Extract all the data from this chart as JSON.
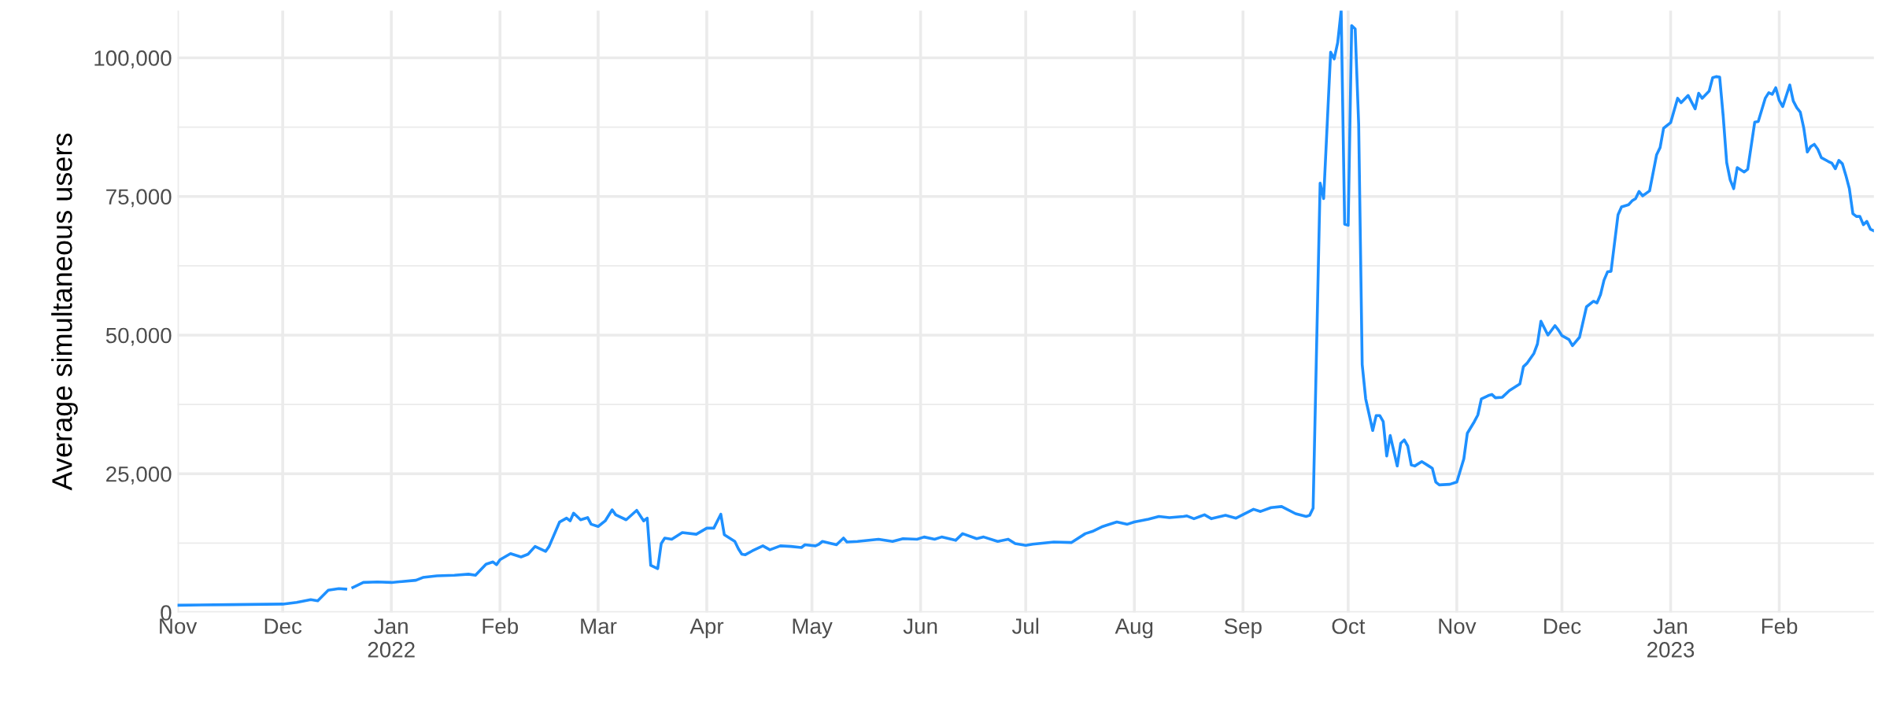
{
  "chart_data": {
    "type": "line",
    "ylabel": "Average simultaneous users",
    "grid": true,
    "line_style": "solid",
    "xlim": [
      "2021-11-01",
      "2023-02-28"
    ],
    "ylim": [
      0,
      108500
    ],
    "xticks": [
      {
        "value": "2021-11-01",
        "label": "Nov"
      },
      {
        "value": "2021-12-01",
        "label": "Dec"
      },
      {
        "value": "2022-01-01",
        "label": "Jan\n2022"
      },
      {
        "value": "2022-02-01",
        "label": "Feb"
      },
      {
        "value": "2022-03-01",
        "label": "Mar"
      },
      {
        "value": "2022-04-01",
        "label": "Apr"
      },
      {
        "value": "2022-05-01",
        "label": "May"
      },
      {
        "value": "2022-06-01",
        "label": "Jun"
      },
      {
        "value": "2022-07-01",
        "label": "Jul"
      },
      {
        "value": "2022-08-01",
        "label": "Aug"
      },
      {
        "value": "2022-09-01",
        "label": "Sep"
      },
      {
        "value": "2022-10-01",
        "label": "Oct"
      },
      {
        "value": "2022-11-01",
        "label": "Nov"
      },
      {
        "value": "2022-12-01",
        "label": "Dec"
      },
      {
        "value": "2023-01-01",
        "label": "Jan\n2023"
      },
      {
        "value": "2023-02-01",
        "label": "Feb"
      }
    ],
    "yticks": [
      {
        "value": 0,
        "label": "0"
      },
      {
        "value": 25000,
        "label": "25,000"
      },
      {
        "value": 50000,
        "label": "50,000"
      },
      {
        "value": 75000,
        "label": "75,000"
      },
      {
        "value": 100000,
        "label": "100,000"
      }
    ],
    "series": [
      {
        "color": "#1e90ff",
        "x": [
          "2021-11-01",
          "2021-11-16",
          "2021-12-01",
          "2021-12-05",
          "2021-12-09",
          "2021-12-11",
          "2021-12-14",
          "2021-12-17",
          "2021-12-19",
          "2021-12-20",
          "2021-12-21",
          "2021-12-24",
          "2021-12-28",
          "2022-01-01",
          "2022-01-08",
          "2022-01-10",
          "2022-01-14",
          "2022-01-19",
          "2022-01-23",
          "2022-01-25",
          "2022-01-28",
          "2022-01-30",
          "2022-01-31",
          "2022-02-01",
          "2022-02-04",
          "2022-02-07",
          "2022-02-09",
          "2022-02-11",
          "2022-02-14",
          "2022-02-15",
          "2022-02-18",
          "2022-02-20",
          "2022-02-21",
          "2022-02-22",
          "2022-02-24",
          "2022-02-26",
          "2022-02-27",
          "2022-03-01",
          "2022-03-03",
          "2022-03-05",
          "2022-03-06",
          "2022-03-09",
          "2022-03-12",
          "2022-03-14",
          "2022-03-15",
          "2022-03-16",
          "2022-03-18",
          "2022-03-19",
          "2022-03-20",
          "2022-03-22",
          "2022-03-25",
          "2022-03-29",
          "2022-04-01",
          "2022-04-03",
          "2022-04-05",
          "2022-04-06",
          "2022-04-09",
          "2022-04-10",
          "2022-04-11",
          "2022-04-12",
          "2022-04-14",
          "2022-04-17",
          "2022-04-19",
          "2022-04-22",
          "2022-04-25",
          "2022-04-28",
          "2022-04-29",
          "2022-05-02",
          "2022-05-03",
          "2022-05-04",
          "2022-05-08",
          "2022-05-10",
          "2022-05-11",
          "2022-05-14",
          "2022-05-20",
          "2022-05-24",
          "2022-05-27",
          "2022-05-31",
          "2022-06-02",
          "2022-06-05",
          "2022-06-07",
          "2022-06-11",
          "2022-06-13",
          "2022-06-17",
          "2022-06-19",
          "2022-06-23",
          "2022-06-26",
          "2022-06-28",
          "2022-07-01",
          "2022-07-03",
          "2022-07-09",
          "2022-07-14",
          "2022-07-18",
          "2022-07-20",
          "2022-07-23",
          "2022-07-24",
          "2022-07-27",
          "2022-07-30",
          "2022-08-01",
          "2022-08-05",
          "2022-08-08",
          "2022-08-11",
          "2022-08-15",
          "2022-08-16",
          "2022-08-18",
          "2022-08-21",
          "2022-08-23",
          "2022-08-27",
          "2022-08-30",
          "2022-09-04",
          "2022-09-06",
          "2022-09-09",
          "2022-09-12",
          "2022-09-16",
          "2022-09-19",
          "2022-09-20",
          "2022-09-21",
          "2022-09-23",
          "2022-09-24",
          "2022-09-26",
          "2022-09-27",
          "2022-09-28",
          "2022-09-29",
          "2022-09-30",
          "2022-10-01",
          "2022-10-02",
          "2022-10-03",
          "2022-10-04",
          "2022-10-05",
          "2022-10-06",
          "2022-10-08",
          "2022-10-09",
          "2022-10-10",
          "2022-10-11",
          "2022-10-12",
          "2022-10-13",
          "2022-10-15",
          "2022-10-16",
          "2022-10-17",
          "2022-10-18",
          "2022-10-19",
          "2022-10-20",
          "2022-10-22",
          "2022-10-24",
          "2022-10-25",
          "2022-10-26",
          "2022-10-27",
          "2022-10-30",
          "2022-11-01",
          "2022-11-03",
          "2022-11-04",
          "2022-11-06",
          "2022-11-07",
          "2022-11-08",
          "2022-11-10",
          "2022-11-11",
          "2022-11-12",
          "2022-11-14",
          "2022-11-16",
          "2022-11-19",
          "2022-11-20",
          "2022-11-21",
          "2022-11-23",
          "2022-11-24",
          "2022-11-25",
          "2022-11-27",
          "2022-11-29",
          "2022-11-30",
          "2022-12-01",
          "2022-12-03",
          "2022-12-04",
          "2022-12-06",
          "2022-12-08",
          "2022-12-10",
          "2022-12-11",
          "2022-12-12",
          "2022-12-13",
          "2022-12-14",
          "2022-12-15",
          "2022-12-17",
          "2022-12-18",
          "2022-12-20",
          "2022-12-21",
          "2022-12-22",
          "2022-12-23",
          "2022-12-24",
          "2022-12-26",
          "2022-12-28",
          "2022-12-29",
          "2022-12-30",
          "2023-01-01",
          "2023-01-03",
          "2023-01-04",
          "2023-01-06",
          "2023-01-08",
          "2023-01-09",
          "2023-01-10",
          "2023-01-12",
          "2023-01-13",
          "2023-01-14",
          "2023-01-15",
          "2023-01-16",
          "2023-01-17",
          "2023-01-18",
          "2023-01-19",
          "2023-01-20",
          "2023-01-22",
          "2023-01-23",
          "2023-01-25",
          "2023-01-26",
          "2023-01-28",
          "2023-01-29",
          "2023-01-30",
          "2023-01-31",
          "2023-02-01",
          "2023-02-02",
          "2023-02-04",
          "2023-02-05",
          "2023-02-06",
          "2023-02-07",
          "2023-02-08",
          "2023-02-09",
          "2023-02-10",
          "2023-02-11",
          "2023-02-12",
          "2023-02-13",
          "2023-02-15",
          "2023-02-16",
          "2023-02-17",
          "2023-02-18",
          "2023-02-19",
          "2023-02-20",
          "2023-02-21",
          "2023-02-22",
          "2023-02-23",
          "2023-02-24",
          "2023-02-25",
          "2023-02-26",
          "2023-02-27",
          "2023-02-28"
        ],
        "values": [
          1300,
          1400,
          1500,
          1800,
          2300,
          2100,
          4000,
          4300,
          4200,
          null,
          4500,
          5400,
          5500,
          5400,
          5800,
          6300,
          6600,
          6700,
          6900,
          6700,
          8700,
          9100,
          8600,
          9500,
          10600,
          10000,
          10500,
          11900,
          11000,
          11900,
          16300,
          17000,
          16500,
          17900,
          16700,
          17100,
          15900,
          15500,
          16500,
          18500,
          17600,
          16700,
          18400,
          16500,
          17000,
          8500,
          7900,
          12400,
          13400,
          13200,
          14400,
          14100,
          15200,
          15200,
          17700,
          14000,
          12800,
          11500,
          10500,
          10400,
          11100,
          12000,
          11300,
          12000,
          11900,
          11700,
          12200,
          12000,
          12300,
          12800,
          12200,
          13400,
          12700,
          12800,
          13200,
          12800,
          13300,
          13200,
          13600,
          13200,
          13600,
          13000,
          14200,
          13300,
          13600,
          12800,
          13200,
          12400,
          12100,
          12300,
          12700,
          12600,
          14200,
          14600,
          15500,
          15700,
          16300,
          15900,
          16300,
          16800,
          17300,
          17100,
          17300,
          17400,
          16900,
          17600,
          16900,
          17500,
          17000,
          18600,
          18200,
          18900,
          19100,
          17800,
          17300,
          17500,
          18800,
          77400,
          74600,
          101000,
          99800,
          102700,
          108500,
          70000,
          69800,
          105800,
          105200,
          87900,
          44700,
          38500,
          32800,
          35500,
          35500,
          34400,
          28200,
          31900,
          26400,
          30500,
          31100,
          30000,
          26600,
          26400,
          27200,
          26400,
          26000,
          23500,
          23000,
          23100,
          23500,
          27700,
          32300,
          34400,
          35600,
          38500,
          39100,
          39300,
          38700,
          38800,
          40000,
          41200,
          44300,
          44900,
          46700,
          48400,
          52500,
          50000,
          51700,
          50900,
          49900,
          49200,
          48100,
          49600,
          55100,
          56100,
          55800,
          57300,
          59900,
          61400,
          61500,
          71700,
          73100,
          73500,
          74200,
          74600,
          75900,
          75100,
          76000,
          82500,
          83800,
          87300,
          88300,
          92700,
          91900,
          93200,
          90800,
          93600,
          92700,
          94000,
          96400,
          96600,
          96500,
          89500,
          81100,
          78000,
          76400,
          80200,
          79400,
          79900,
          88400,
          88500,
          92700,
          93700,
          93400,
          94600,
          92300,
          91200,
          95100,
          92200,
          91000,
          90200,
          87300,
          83000,
          84000,
          84400,
          83500,
          82000,
          81300,
          81000,
          80000,
          81500,
          80900,
          78800,
          76400,
          71900,
          71400,
          71400,
          69900,
          70500,
          69100,
          68800
        ]
      }
    ]
  }
}
